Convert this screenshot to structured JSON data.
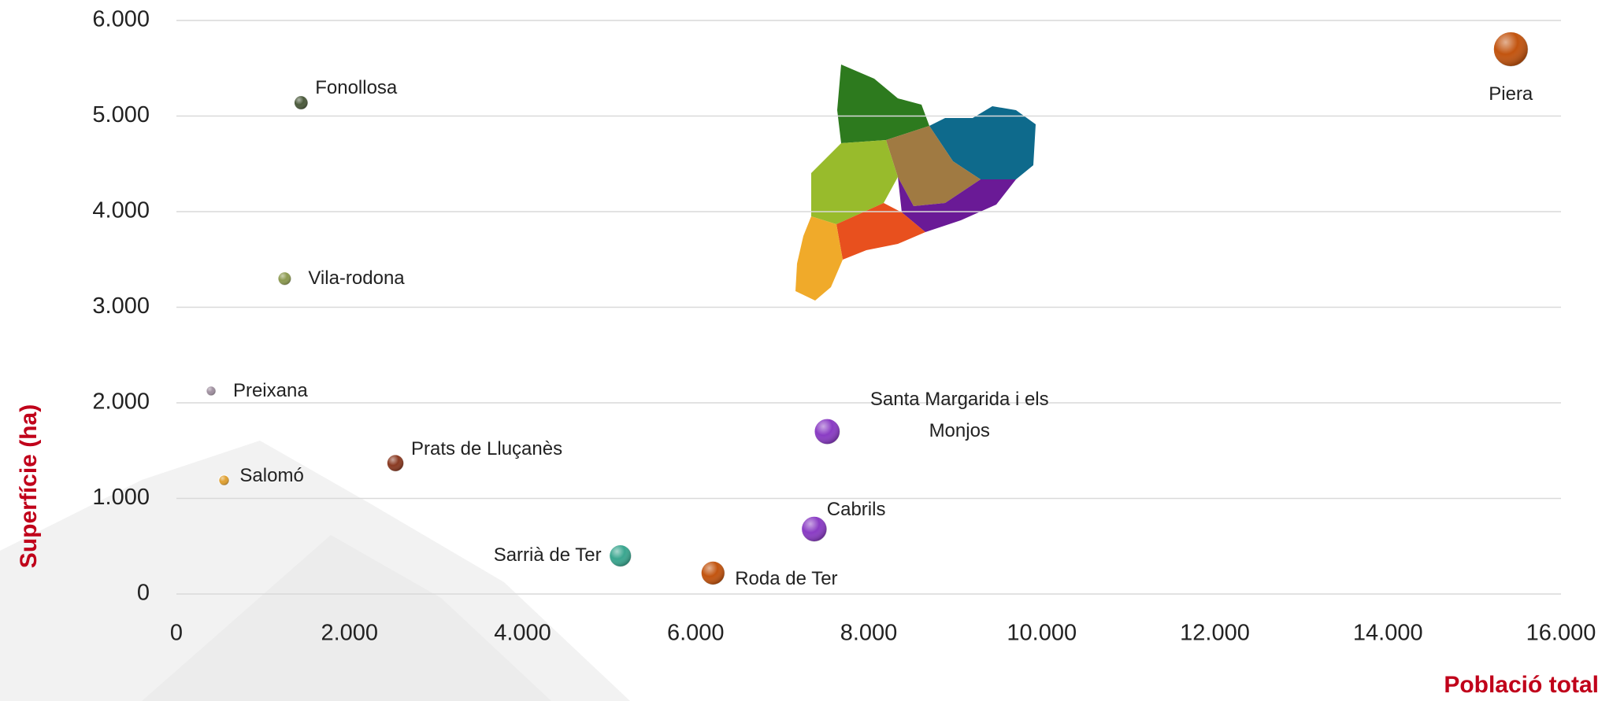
{
  "chart_data": {
    "type": "scatter",
    "xlabel": "Població total",
    "ylabel": "Superfície (ha)",
    "series": [
      {
        "names": [
          "Fonollosa",
          "Vila-rodona",
          "Preixana",
          "Salomó",
          "Prats de Lluçanès",
          "Sarrià de Ter",
          "Roda de Ter",
          "Cabrils",
          "Santa Margarida i els Monjos",
          "Piera"
        ],
        "x": [
          1440,
          1250,
          400,
          550,
          2530,
          5130,
          6200,
          7370,
          7520,
          15420
        ],
        "values": [
          5140,
          3300,
          2125,
          1190,
          1370,
          400,
          220,
          680,
          1700,
          5700
        ],
        "colors": [
          "#4b5a3c",
          "#8c9a50",
          "#a090a0",
          "#e0a030",
          "#8a3a22",
          "#3aa68f",
          "#c2540f",
          "#8a3cc4",
          "#8a3cc4",
          "#c2540f"
        ]
      }
    ],
    "xlim": [
      0,
      16000
    ],
    "xticks": [
      0,
      {
        "value": 2000,
        "label": "2.000"
      },
      {
        "value": 4000,
        "label": "4.000"
      },
      {
        "value": 6000,
        "label": "6.000"
      },
      {
        "value": 8000,
        "label": "8.000"
      },
      {
        "value": 10000,
        "label": "10.000"
      },
      {
        "value": 12000,
        "label": "12.000"
      },
      {
        "value": 14000,
        "label": "14.000"
      },
      {
        "value": 16000,
        "label": "16.000"
      }
    ],
    "ylim": [
      0,
      6000
    ],
    "yticks": [
      0,
      {
        "value": 1000,
        "label": "1.000"
      },
      {
        "value": 2000,
        "label": "2.000"
      },
      {
        "value": 3000,
        "label": "3.000"
      },
      {
        "value": 4000,
        "label": "4.000"
      },
      {
        "value": 5000,
        "label": "5.000"
      },
      {
        "value": 6000,
        "label": "6.000"
      }
    ],
    "grid": true
  }
}
